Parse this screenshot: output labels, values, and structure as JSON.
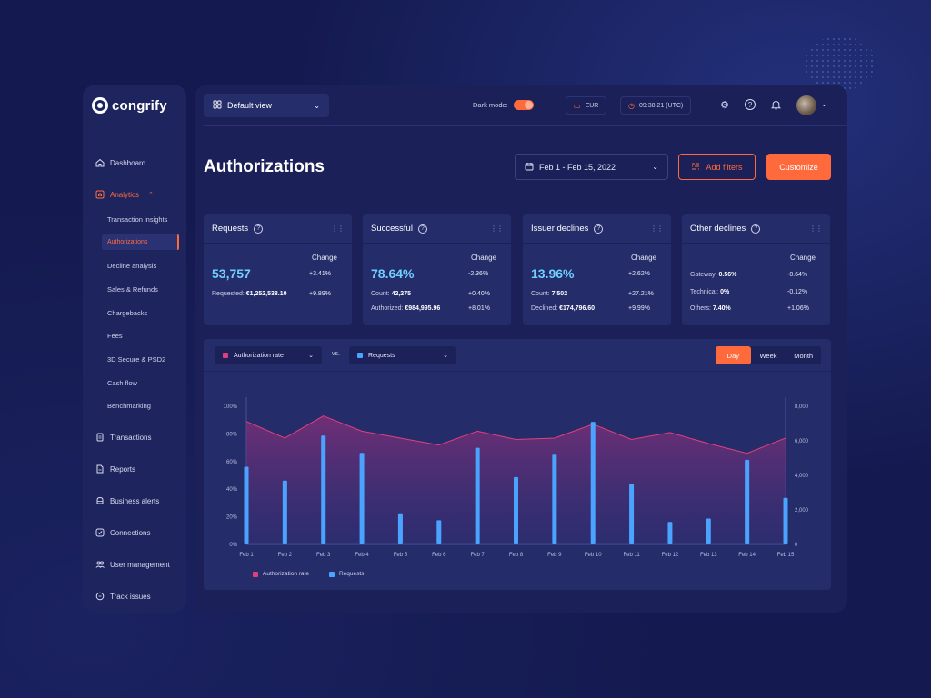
{
  "app": {
    "name": "congrify"
  },
  "colors": {
    "accent": "#ff6a3d",
    "rate": "#e0407a",
    "requests": "#4aa3ff",
    "kpi_value": "#6fd0ff"
  },
  "sidebar": {
    "items": [
      {
        "label": "Dashboard",
        "icon": "home-icon"
      },
      {
        "label": "Analytics",
        "icon": "chart-icon",
        "active": true
      },
      {
        "label": "Transactions",
        "icon": "document-icon"
      },
      {
        "label": "Reports",
        "icon": "report-icon"
      },
      {
        "label": "Business alerts",
        "icon": "alert-icon"
      },
      {
        "label": "Connections",
        "icon": "check-icon"
      },
      {
        "label": "User management",
        "icon": "users-icon"
      },
      {
        "label": "Track issues",
        "icon": "chat-icon"
      }
    ],
    "analytics_sub": [
      "Transaction insights",
      "Authorizations",
      "Decline analysis",
      "Sales & Refunds",
      "Chargebacks",
      "Fees",
      "3D Secure & PSD2",
      "Cash flow",
      "Benchmarking"
    ]
  },
  "topbar": {
    "view": "Default view",
    "dark_mode_label": "Dark mode:",
    "currency": "EUR",
    "time": "09:38:21 (UTC)"
  },
  "page": {
    "title": "Authorizations",
    "date_range": "Feb 1 - Feb 15, 2022",
    "add_filters": "Add filters",
    "customize": "Customize"
  },
  "cards": [
    {
      "title": "Requests",
      "change_label": "Change",
      "value": "53,757",
      "value_change": "+3.41%",
      "rows": [
        {
          "label": "Requested:",
          "value": "€1,252,538.10",
          "change": "+9.89%"
        }
      ]
    },
    {
      "title": "Successful",
      "change_label": "Change",
      "value": "78.64%",
      "value_change": "-2.36%",
      "rows": [
        {
          "label": "Count:",
          "value": "42,275",
          "change": "+0.40%"
        },
        {
          "label": "Authorized:",
          "value": "€984,995.96",
          "change": "+8.01%"
        }
      ]
    },
    {
      "title": "Issuer declines",
      "change_label": "Change",
      "value": "13.96%",
      "value_change": "+2.62%",
      "rows": [
        {
          "label": "Count:",
          "value": "7,502",
          "change": "+27.21%"
        },
        {
          "label": "Declined:",
          "value": "€174,796.60",
          "change": "+9.99%"
        }
      ]
    },
    {
      "title": "Other declines",
      "change_label": "Change",
      "value": "",
      "value_change": "",
      "rows": [
        {
          "label": "Gateway:",
          "value": "0.56%",
          "change": "-0.64%"
        },
        {
          "label": "Technical:",
          "value": "0%",
          "change": "-0.12%"
        },
        {
          "label": "Others:",
          "value": "7.40%",
          "change": "+1.06%"
        }
      ]
    }
  ],
  "chart_controls": {
    "left_select": "Authorization rate",
    "vs": "vs.",
    "right_select": "Requests",
    "periods": [
      "Day",
      "Week",
      "Month"
    ],
    "active_period": "Day"
  },
  "chart_data": {
    "type": "bar",
    "categories": [
      "Feb 1",
      "Feb 2",
      "Feb 3",
      "Feb 4",
      "Feb 5",
      "Feb 6",
      "Feb 7",
      "Feb 8",
      "Feb 9",
      "Feb 10",
      "Feb 11",
      "Feb 12",
      "Feb 13",
      "Feb 14",
      "Feb 15"
    ],
    "series": [
      {
        "name": "Authorization rate",
        "type": "area",
        "axis": "left",
        "values": [
          89,
          77,
          93,
          82,
          77,
          72,
          82,
          76,
          77,
          87,
          76,
          81,
          73,
          66,
          77
        ]
      },
      {
        "name": "Requests",
        "type": "bar",
        "axis": "right",
        "values": [
          4500,
          3700,
          6300,
          5300,
          1800,
          1400,
          5600,
          3900,
          5200,
          7100,
          3500,
          1300,
          1500,
          4900,
          2700
        ]
      }
    ],
    "y_left": {
      "min": 0,
      "max": 100,
      "ticks": [
        "0%",
        "20%",
        "40%",
        "60%",
        "80%",
        "100%"
      ]
    },
    "y_right": {
      "min": 0,
      "max": 8000,
      "ticks": [
        "0",
        "2,000",
        "4,000",
        "6,000",
        "8,000"
      ]
    },
    "legend": [
      "Authorization rate",
      "Requests"
    ],
    "legend_position": "bottom-left",
    "grid": false
  }
}
